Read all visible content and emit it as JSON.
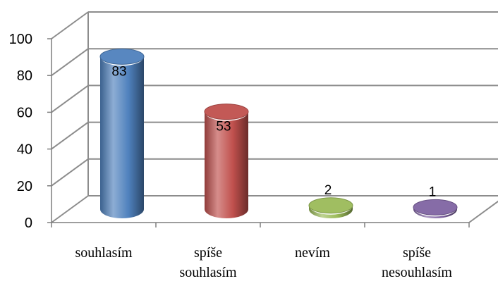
{
  "chart_data": {
    "type": "bar",
    "style": "3d-cylinder",
    "categories": [
      "souhlasím",
      "spíše souhlasím",
      "nevím",
      "spíše nesouhlasím"
    ],
    "category_lines": [
      [
        "souhlasím"
      ],
      [
        "spíše",
        "souhlasím"
      ],
      [
        "nevím"
      ],
      [
        "spíše",
        "nesouhlasím"
      ]
    ],
    "values": [
      83,
      53,
      2,
      1
    ],
    "data_labels": [
      "83",
      "53",
      "2",
      "1"
    ],
    "yticks": [
      "0",
      "20",
      "40",
      "60",
      "80",
      "100"
    ],
    "ylim": [
      0,
      100
    ],
    "grid": true,
    "legend": "none",
    "colors": {
      "bars": [
        "#4F81BD",
        "#C0504D",
        "#9BBB59",
        "#8064A2"
      ],
      "grid": "#8C8C8C",
      "axis": "#7F7F7F"
    }
  }
}
